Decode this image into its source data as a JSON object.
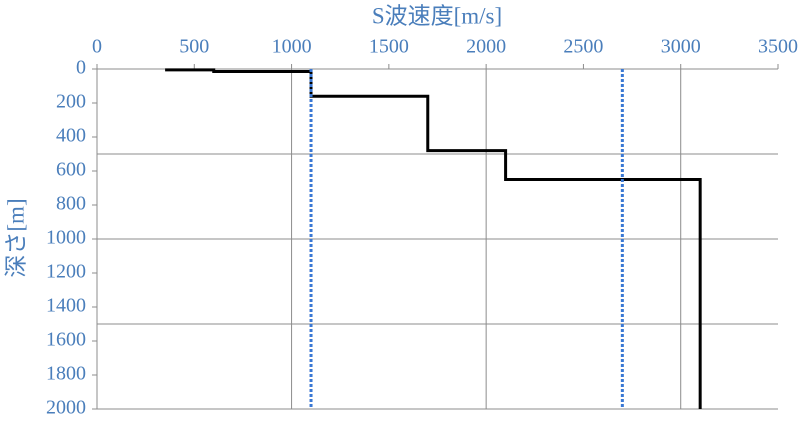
{
  "chart_data": {
    "type": "line",
    "xlabel": "S波速度[m/s]",
    "ylabel": "深さ[m]",
    "xlim": [
      0,
      3500
    ],
    "xticks": [
      0,
      500,
      1000,
      1500,
      2000,
      2500,
      3000,
      3500
    ],
    "ylim": [
      0,
      2000
    ],
    "yticks": [
      0,
      200,
      400,
      600,
      800,
      1000,
      1200,
      1400,
      1600,
      1800,
      2000
    ],
    "y_reversed": true,
    "x_axis_position": "top",
    "xgrid": [
      1000,
      2000,
      3000
    ],
    "ygrid": [
      500,
      1000,
      1500
    ],
    "series": [
      {
        "color": "#000000",
        "dash": "solid",
        "x": [
          350,
          600,
          600,
          1100,
          1100,
          1700,
          1700,
          2100,
          2100,
          3100,
          3100
        ],
        "values": [
          5,
          5,
          15,
          15,
          160,
          160,
          480,
          480,
          650,
          650,
          2000
        ]
      },
      {
        "color": "#3a78d4",
        "dash": "dotted",
        "x": [
          1100,
          1100
        ],
        "values": [
          0,
          2000
        ]
      },
      {
        "color": "#3a78d4",
        "dash": "dotted",
        "x": [
          2700,
          2700
        ],
        "values": [
          0,
          2000
        ]
      }
    ]
  }
}
